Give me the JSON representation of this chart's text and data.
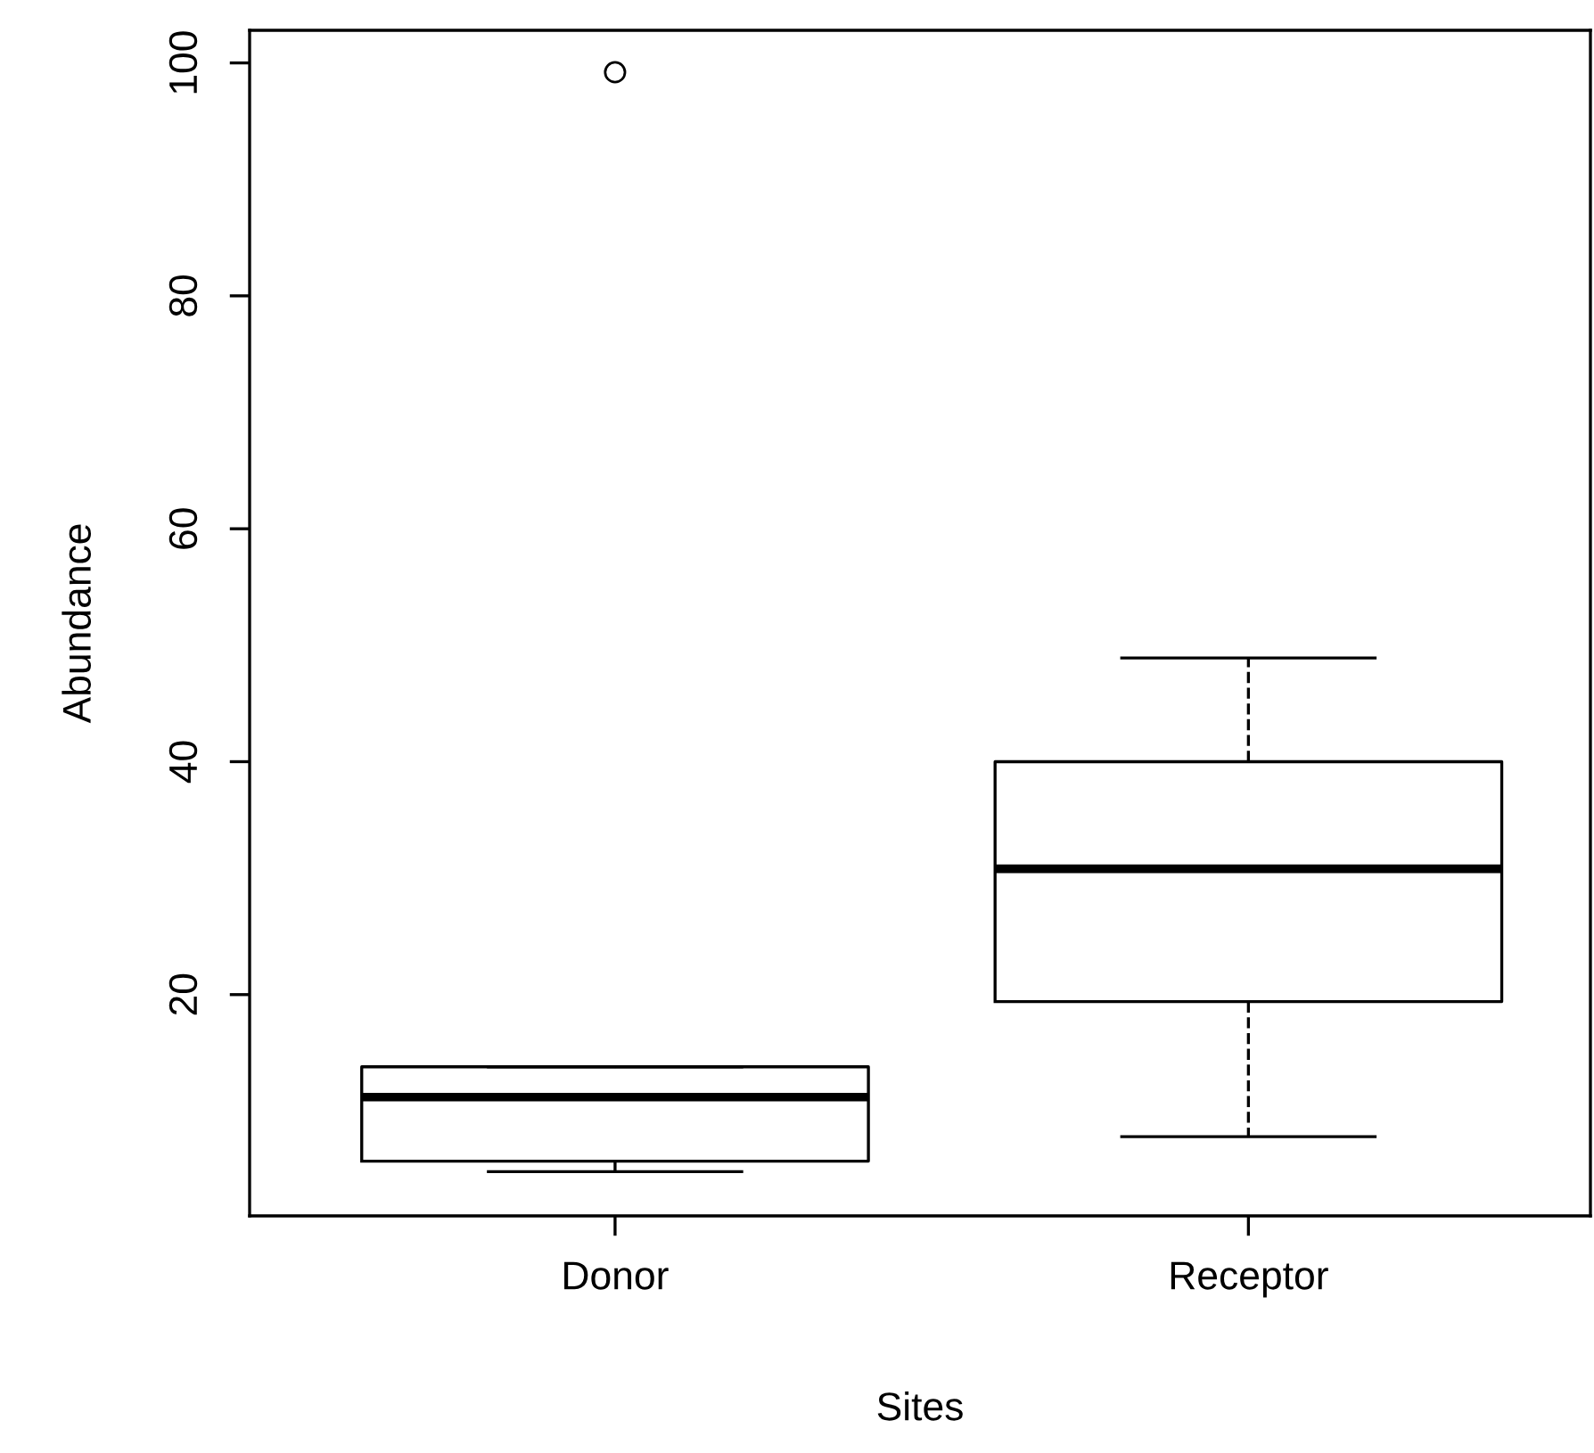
{
  "chart_data": {
    "type": "box",
    "xlabel": "Sites",
    "ylabel": "Abundance",
    "categories": [
      "Donor",
      "Receptor"
    ],
    "boxes": [
      {
        "low": 4.8,
        "q1": 5.7,
        "median": 11.2,
        "q3": 13.8,
        "high": 13.8,
        "outliers": [
          99.2
        ]
      },
      {
        "low": 7.8,
        "q1": 19.4,
        "median": 30.8,
        "q3": 40,
        "high": 48.9
      }
    ],
    "ylim": [
      1.0,
      102.8
    ],
    "yticks": [
      20,
      40,
      60,
      80,
      100
    ],
    "grid": false,
    "line_style": "dashed"
  }
}
